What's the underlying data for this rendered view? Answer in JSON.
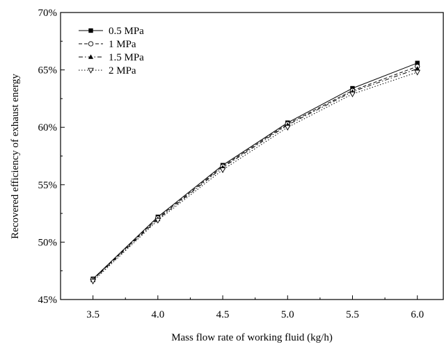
{
  "chart_data": {
    "type": "line",
    "xlabel": "Mass flow rate of working fluid (kg/h)",
    "ylabel": "Recovered efficiency of exhaust energy",
    "x": [
      3.5,
      4.0,
      4.5,
      5.0,
      5.5,
      6.0
    ],
    "xticks": [
      "3.5",
      "4.0",
      "4.5",
      "5.0",
      "5.5",
      "6.0"
    ],
    "xlim": [
      3.25,
      6.2
    ],
    "ylim": [
      45,
      70
    ],
    "yticks": [
      45,
      50,
      55,
      60,
      65,
      70
    ],
    "yticklabels": [
      "45%",
      "50%",
      "55%",
      "60%",
      "65%",
      "70%"
    ],
    "legend_position": "top-left",
    "grid": false,
    "series": [
      {
        "name": "0.5 MPa",
        "values": [
          46.8,
          52.2,
          56.7,
          60.4,
          63.4,
          65.6
        ],
        "marker": "square-filled",
        "dash": "solid",
        "color": "#000000"
      },
      {
        "name": "1 MPa",
        "values": [
          46.75,
          52.1,
          56.6,
          60.3,
          63.2,
          65.3
        ],
        "marker": "circle-open",
        "dash": "dashed",
        "color": "#000000"
      },
      {
        "name": "1.5 MPa",
        "values": [
          46.7,
          52.0,
          56.5,
          60.2,
          63.1,
          65.1
        ],
        "marker": "triangle-up-filled",
        "dash": "dash-dot",
        "color": "#000000"
      },
      {
        "name": "2 MPa",
        "values": [
          46.6,
          51.9,
          56.3,
          60.0,
          62.9,
          64.8
        ],
        "marker": "triangle-down-open",
        "dash": "dotted",
        "color": "#000000"
      }
    ]
  }
}
